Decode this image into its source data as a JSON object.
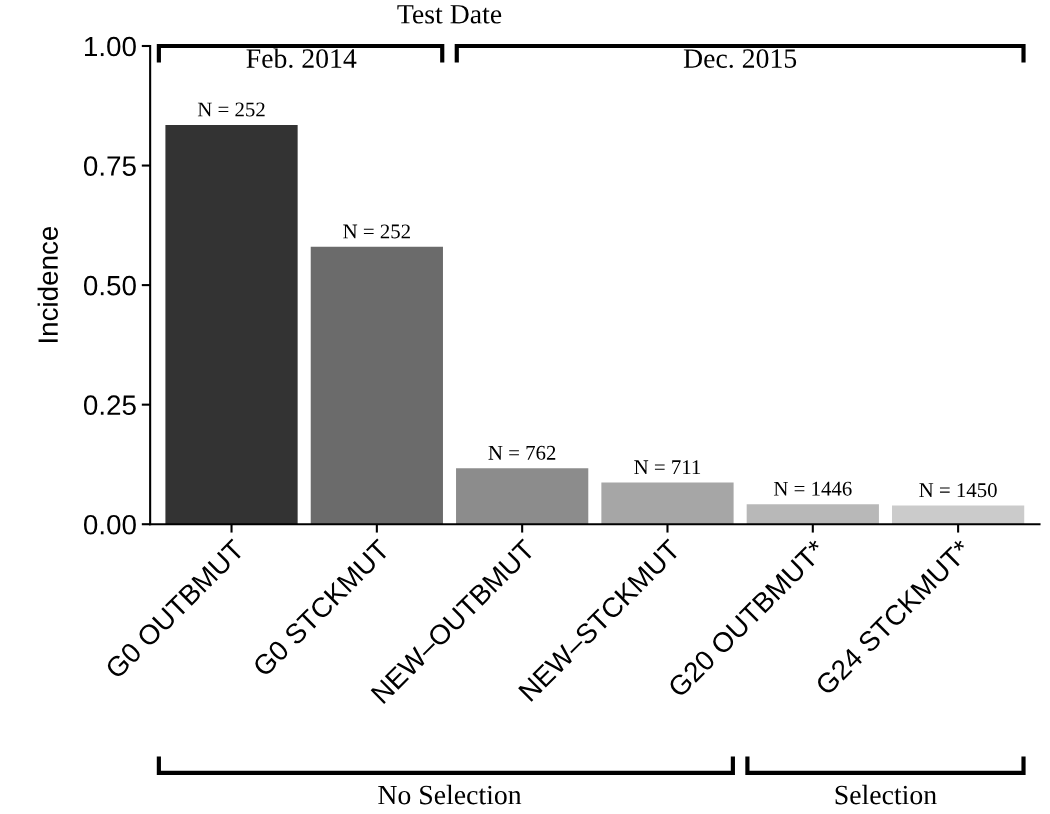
{
  "chart_data": {
    "type": "bar",
    "ylabel": "Incidence",
    "categories": [
      "G0 OUTBMUT",
      "G0 STCKMUT",
      "NEW–OUTBMUT",
      "NEW–STCKMUT",
      "G20 OUTBMUT*",
      "G24 STCKMUT*"
    ],
    "values": [
      0.835,
      0.58,
      0.117,
      0.087,
      0.042,
      0.039
    ],
    "colors": [
      "#333333",
      "#6b6b6b",
      "#8c8c8c",
      "#a6a6a6",
      "#b8b8b8",
      "#cbcbcb"
    ],
    "ylim": [
      0,
      1
    ],
    "yticks": [
      {
        "value": 0,
        "label": "0.00"
      },
      {
        "value": 0.25,
        "label": "0.25"
      },
      {
        "value": 0.5,
        "label": "0.50"
      },
      {
        "value": 0.75,
        "label": "0.75"
      },
      {
        "value": 1,
        "label": "1.00"
      }
    ],
    "grid": false,
    "annotations": [
      "Test Date",
      "Feb. 2014",
      "Dec. 2015",
      "No Selection",
      "Selection",
      {
        "text": "N = 252",
        "x": "G0 OUTBMUT",
        "y": 0.835
      },
      {
        "text": "N = 252",
        "x": "G0 STCKMUT",
        "y": 0.58
      },
      {
        "text": "N = 762",
        "x": "NEW–OUTBMUT",
        "y": 0.117
      },
      {
        "text": "N = 711",
        "x": "NEW–STCKMUT",
        "y": 0.087
      },
      {
        "text": "N = 1446",
        "x": "G20 OUTBMUT*",
        "y": 0.042
      },
      {
        "text": "N = 1450",
        "x": "G24 STCKMUT*",
        "y": 0.039
      }
    ]
  }
}
